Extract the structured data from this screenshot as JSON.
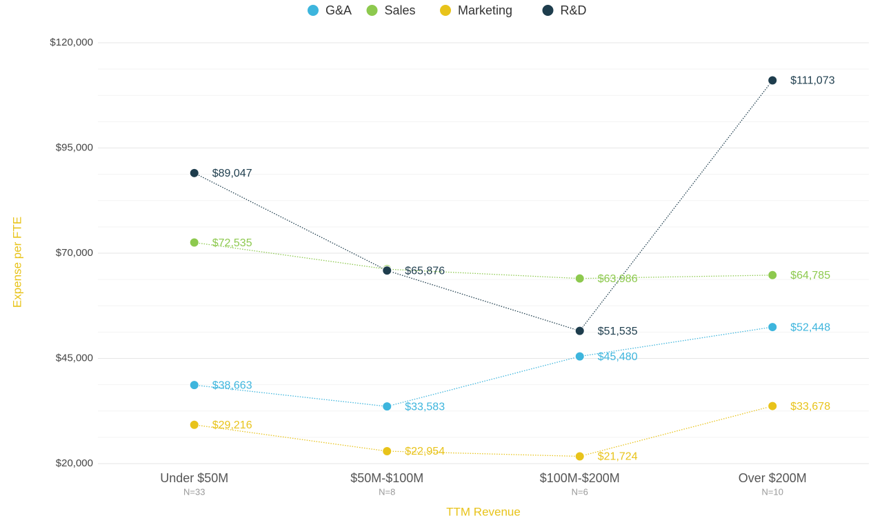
{
  "chart_data": {
    "type": "line",
    "x_label": "TTM Revenue",
    "y_label": "Expense per FTE",
    "categories": [
      "Under $50M",
      "$50M-$100M",
      "$100M-$200M",
      "Over $200M"
    ],
    "category_notes": [
      "N=33",
      "N=8",
      "N=6",
      "N=10"
    ],
    "series": [
      {
        "name": "G&A",
        "color": "#3db5dd",
        "values": [
          38663,
          33583,
          45480,
          52448
        ],
        "value_labels": [
          "$38,663",
          "$33,583",
          "$45,480",
          "$52,448"
        ]
      },
      {
        "name": "Sales",
        "color": "#8dc94e",
        "values": [
          72535,
          66200,
          63986,
          64785
        ],
        "value_labels": [
          "$72,535",
          null,
          "$63,986",
          "$64,785"
        ]
      },
      {
        "name": "Marketing",
        "color": "#e8c31a",
        "values": [
          29216,
          22954,
          21724,
          33678
        ],
        "value_labels": [
          "$29,216",
          "$22,954",
          "$21,724",
          "$33,678"
        ]
      },
      {
        "name": "R&D",
        "color": "#1e3d4d",
        "values": [
          89047,
          65876,
          51535,
          111073
        ],
        "value_labels": [
          "$89,047",
          "$65,876",
          "$51,535",
          "$111,073"
        ]
      }
    ],
    "ylim": [
      20000,
      120000
    ],
    "yticks": [
      {
        "value": 20000,
        "label": "$20,000"
      },
      {
        "value": 45000,
        "label": "$45,000"
      },
      {
        "value": 70000,
        "label": "$70,000"
      },
      {
        "value": 95000,
        "label": "$95,000"
      },
      {
        "value": 120000,
        "label": "$120,000"
      }
    ],
    "grid": true,
    "legend_position": "top"
  }
}
